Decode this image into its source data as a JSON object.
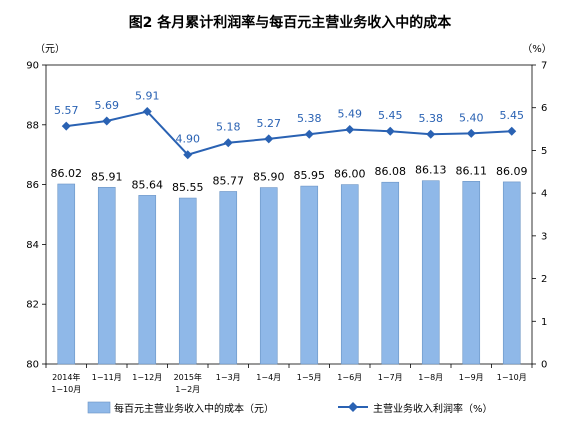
{
  "chart_data": {
    "type": "bar+line",
    "title": "图2 各月累计利润率与每百元主营业务收入中的成本",
    "left_unit": "（元）",
    "right_unit": "（%）",
    "categories": [
      [
        "2014年",
        "1−10月"
      ],
      [
        "1−11月"
      ],
      [
        "1−12月"
      ],
      [
        "2015年",
        "1−2月"
      ],
      [
        "1−3月"
      ],
      [
        "1−4月"
      ],
      [
        "1−5月"
      ],
      [
        "1−6月"
      ],
      [
        "1−7月"
      ],
      [
        "1−8月"
      ],
      [
        "1−9月"
      ],
      [
        "1−10月"
      ]
    ],
    "series": [
      {
        "name": "每百元主营业务收入中的成本（元）",
        "type": "bar",
        "axis": "left",
        "values": [
          86.02,
          85.91,
          85.64,
          85.55,
          85.77,
          85.9,
          85.95,
          86.0,
          86.08,
          86.13,
          86.11,
          86.09
        ],
        "labels": [
          "86.02",
          "85.91",
          "85.64",
          "85.55",
          "85.77",
          "85.90",
          "85.95",
          "86.00",
          "86.08",
          "86.13",
          "86.11",
          "86.09"
        ],
        "color": "#8fb8e8"
      },
      {
        "name": "主营业务收入利润率（%）",
        "type": "line",
        "axis": "right",
        "values": [
          5.57,
          5.69,
          5.91,
          4.9,
          5.18,
          5.27,
          5.38,
          5.49,
          5.45,
          5.38,
          5.4,
          5.45
        ],
        "labels": [
          "5.57",
          "5.69",
          "5.91",
          "4.90",
          "5.18",
          "5.27",
          "5.38",
          "5.49",
          "5.45",
          "5.38",
          "5.40",
          "5.45"
        ],
        "color": "#2a62b3"
      }
    ],
    "ylim_left": [
      80,
      90
    ],
    "yticks_left": [
      "80",
      "82",
      "84",
      "86",
      "88",
      "90"
    ],
    "ylim_right": [
      0,
      7
    ],
    "yticks_right": [
      "0",
      "1",
      "2",
      "3",
      "4",
      "5",
      "6",
      "7"
    ],
    "grid": false,
    "legend_position": "bottom"
  }
}
